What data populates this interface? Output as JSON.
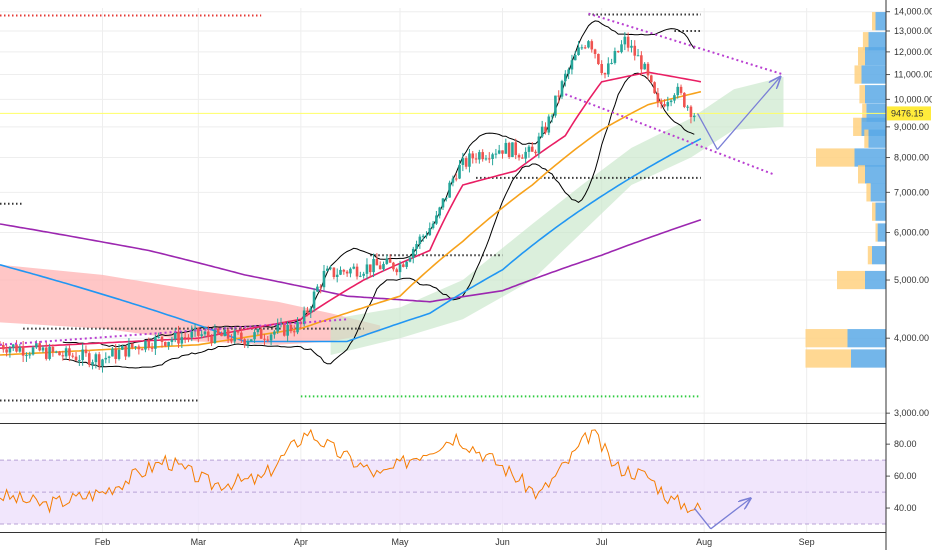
{
  "colors": {
    "background": "#ffffff",
    "grid": "#eeeeee",
    "candle_up": "#26a69a",
    "candle_down": "#ef5350",
    "ma_fast": "#e91e63",
    "ma_mid": "#f7a21b",
    "ma_slow": "#2196f3",
    "ma_long": "#9c27b0",
    "bollinger": "#000000",
    "cloud_bull": "#c8e6c9",
    "cloud_bear": "#ffb3b3",
    "rsi_line": "#f57c00",
    "rsi_band": "#ede0fb",
    "trend_dotted": "#b93fd1",
    "projection_arrow": "#7a7fd6",
    "current_price_line": "#ffff66",
    "price_badge": "#ffeb3b",
    "volume_profile_up": "#5aa9e6",
    "volume_profile_down": "#ffd180"
  },
  "chart_data": [
    {
      "type": "candlestick",
      "pane": "price",
      "y_scale": "log",
      "ylim": [
        2900,
        14200
      ],
      "x_range": [
        "2020-01-01",
        "2020-09-25"
      ],
      "x_tick_labels": [
        "Feb",
        "Mar",
        "Apr",
        "May",
        "Jun",
        "Jul",
        "Aug",
        "Sep"
      ],
      "x_tick_dates": [
        "2020-02-01",
        "2020-03-01",
        "2020-04-01",
        "2020-05-01",
        "2020-06-01",
        "2020-07-01",
        "2020-08-01",
        "2020-09-01"
      ],
      "y_tick_labels": [
        "14,000.00",
        "13,000.00",
        "12,000.00",
        "11,000.00",
        "10,000.00",
        "9,000.00",
        "8,000.00",
        "7,000.00",
        "6,000.00",
        "5,000.00",
        "4,000.00",
        "3,000.00"
      ],
      "y_tick_values": [
        14000,
        13000,
        12000,
        11000,
        10000,
        9000,
        8000,
        7000,
        6000,
        5000,
        4000,
        3000
      ],
      "current_price": 9476.15,
      "current_price_label": "9476.15",
      "ohlc_keypoints": [
        [
          "2020-01-01",
          3900
        ],
        [
          "2020-01-20",
          3750
        ],
        [
          "2020-02-01",
          3700
        ],
        [
          "2020-02-15",
          3950
        ],
        [
          "2020-03-01",
          4050
        ],
        [
          "2020-03-15",
          4000
        ],
        [
          "2020-04-01",
          4200
        ],
        [
          "2020-04-08",
          5100
        ],
        [
          "2020-04-20",
          5250
        ],
        [
          "2020-05-01",
          5300
        ],
        [
          "2020-05-12",
          6300
        ],
        [
          "2020-05-18",
          7600
        ],
        [
          "2020-05-24",
          8100
        ],
        [
          "2020-06-01",
          8300
        ],
        [
          "2020-06-10",
          8100
        ],
        [
          "2020-06-15",
          9200
        ],
        [
          "2020-06-20",
          10900
        ],
        [
          "2020-06-24",
          12000
        ],
        [
          "2020-06-27",
          12700
        ],
        [
          "2020-07-02",
          11000
        ],
        [
          "2020-07-08",
          12500
        ],
        [
          "2020-07-13",
          11500
        ],
        [
          "2020-07-18",
          9700
        ],
        [
          "2020-07-23",
          10400
        ],
        [
          "2020-07-29",
          9476
        ]
      ],
      "indicators": {
        "ma_fast": [
          [
            "2020-01-01",
            3850
          ],
          [
            "2020-03-01",
            4000
          ],
          [
            "2020-04-01",
            4300
          ],
          [
            "2020-04-20",
            5000
          ],
          [
            "2020-05-10",
            5600
          ],
          [
            "2020-05-20",
            7200
          ],
          [
            "2020-06-05",
            7600
          ],
          [
            "2020-06-20",
            8700
          ],
          [
            "2020-07-01",
            10700
          ],
          [
            "2020-07-15",
            11100
          ],
          [
            "2020-07-31",
            10700
          ]
        ],
        "ma_mid": [
          [
            "2020-01-01",
            3750
          ],
          [
            "2020-03-01",
            3900
          ],
          [
            "2020-04-01",
            4150
          ],
          [
            "2020-05-01",
            4700
          ],
          [
            "2020-05-20",
            5800
          ],
          [
            "2020-06-10",
            7200
          ],
          [
            "2020-07-01",
            8900
          ],
          [
            "2020-07-15",
            9800
          ],
          [
            "2020-07-31",
            10300
          ]
        ],
        "ma_slow": [
          [
            "2020-01-01",
            5300
          ],
          [
            "2020-03-15",
            3950
          ],
          [
            "2020-04-15",
            3950
          ],
          [
            "2020-05-10",
            4400
          ],
          [
            "2020-06-01",
            5200
          ],
          [
            "2020-07-01",
            6900
          ],
          [
            "2020-07-31",
            8600
          ]
        ],
        "ma_long": [
          [
            "2020-01-01",
            6200
          ],
          [
            "2020-02-15",
            5600
          ],
          [
            "2020-03-15",
            5100
          ],
          [
            "2020-04-15",
            4700
          ],
          [
            "2020-05-10",
            4600
          ],
          [
            "2020-06-01",
            4800
          ],
          [
            "2020-07-01",
            5500
          ],
          [
            "2020-07-31",
            6300
          ]
        ]
      },
      "projection_path": [
        [
          "2020-07-30",
          9476
        ],
        [
          "2020-08-05",
          8250
        ],
        [
          "2020-08-24",
          10900
        ]
      ]
    },
    {
      "type": "line",
      "pane": "rsi",
      "ylim": [
        25,
        92
      ],
      "y_tick_labels": [
        "80.00",
        "60.00",
        "40.00"
      ],
      "y_tick_values": [
        80,
        60,
        40
      ],
      "band": [
        30,
        70
      ],
      "series_keypoints": [
        [
          "2020-01-01",
          48
        ],
        [
          "2020-01-15",
          42
        ],
        [
          "2020-02-01",
          50
        ],
        [
          "2020-02-20",
          70
        ],
        [
          "2020-03-05",
          55
        ],
        [
          "2020-03-20",
          58
        ],
        [
          "2020-04-03",
          88
        ],
        [
          "2020-04-12",
          75
        ],
        [
          "2020-04-25",
          60
        ],
        [
          "2020-05-05",
          72
        ],
        [
          "2020-05-18",
          85
        ],
        [
          "2020-06-01",
          66
        ],
        [
          "2020-06-12",
          48
        ],
        [
          "2020-06-22",
          72
        ],
        [
          "2020-06-28",
          88
        ],
        [
          "2020-07-05",
          66
        ],
        [
          "2020-07-15",
          60
        ],
        [
          "2020-07-22",
          45
        ],
        [
          "2020-07-31",
          39
        ]
      ],
      "projection_path": [
        [
          "2020-07-29",
          40
        ],
        [
          "2020-08-03",
          27
        ],
        [
          "2020-08-15",
          46
        ]
      ]
    }
  ]
}
